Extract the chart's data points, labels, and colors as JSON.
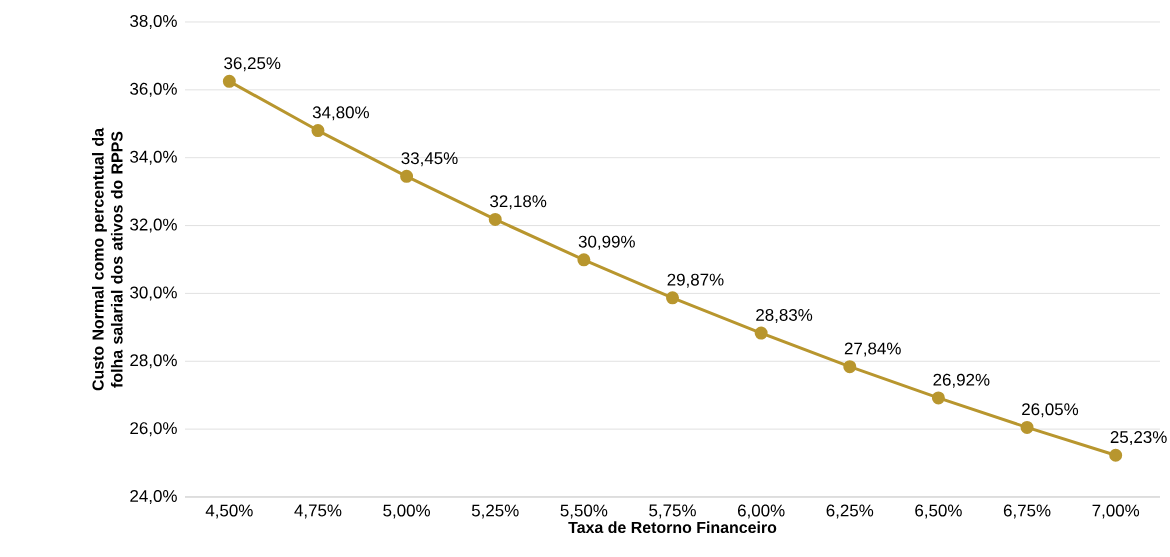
{
  "chart_data": {
    "type": "line",
    "xlabel": "Taxa de Retorno Financeiro",
    "ylabel": "Custo Normal como percentual da folha salarial dos ativos do RPPS",
    "categories": [
      "4,50%",
      "4,75%",
      "5,00%",
      "5,25%",
      "5,50%",
      "5,75%",
      "6,00%",
      "6,25%",
      "6,50%",
      "6,75%",
      "7,00%"
    ],
    "values": [
      36.25,
      34.8,
      33.45,
      32.18,
      30.99,
      29.87,
      28.83,
      27.84,
      26.92,
      26.05,
      25.23
    ],
    "value_labels": [
      "36,25%",
      "34,80%",
      "33,45%",
      "32,18%",
      "30,99%",
      "29,87%",
      "28,83%",
      "27,84%",
      "26,92%",
      "26,05%",
      "25,23%"
    ],
    "color": "#b8962e",
    "ylim": [
      24,
      38
    ],
    "yticks": [
      {
        "value": 24,
        "label": "24,0%"
      },
      {
        "value": 26,
        "label": "26,0%"
      },
      {
        "value": 28,
        "label": "28,0%"
      },
      {
        "value": 30,
        "label": "30,0%"
      },
      {
        "value": 32,
        "label": "32,0%"
      },
      {
        "value": 34,
        "label": "34,0%"
      },
      {
        "value": 36,
        "label": "36,0%"
      },
      {
        "value": 38,
        "label": "38,0%"
      }
    ],
    "grid": "y",
    "marker": "circle",
    "line_style": "solid"
  }
}
